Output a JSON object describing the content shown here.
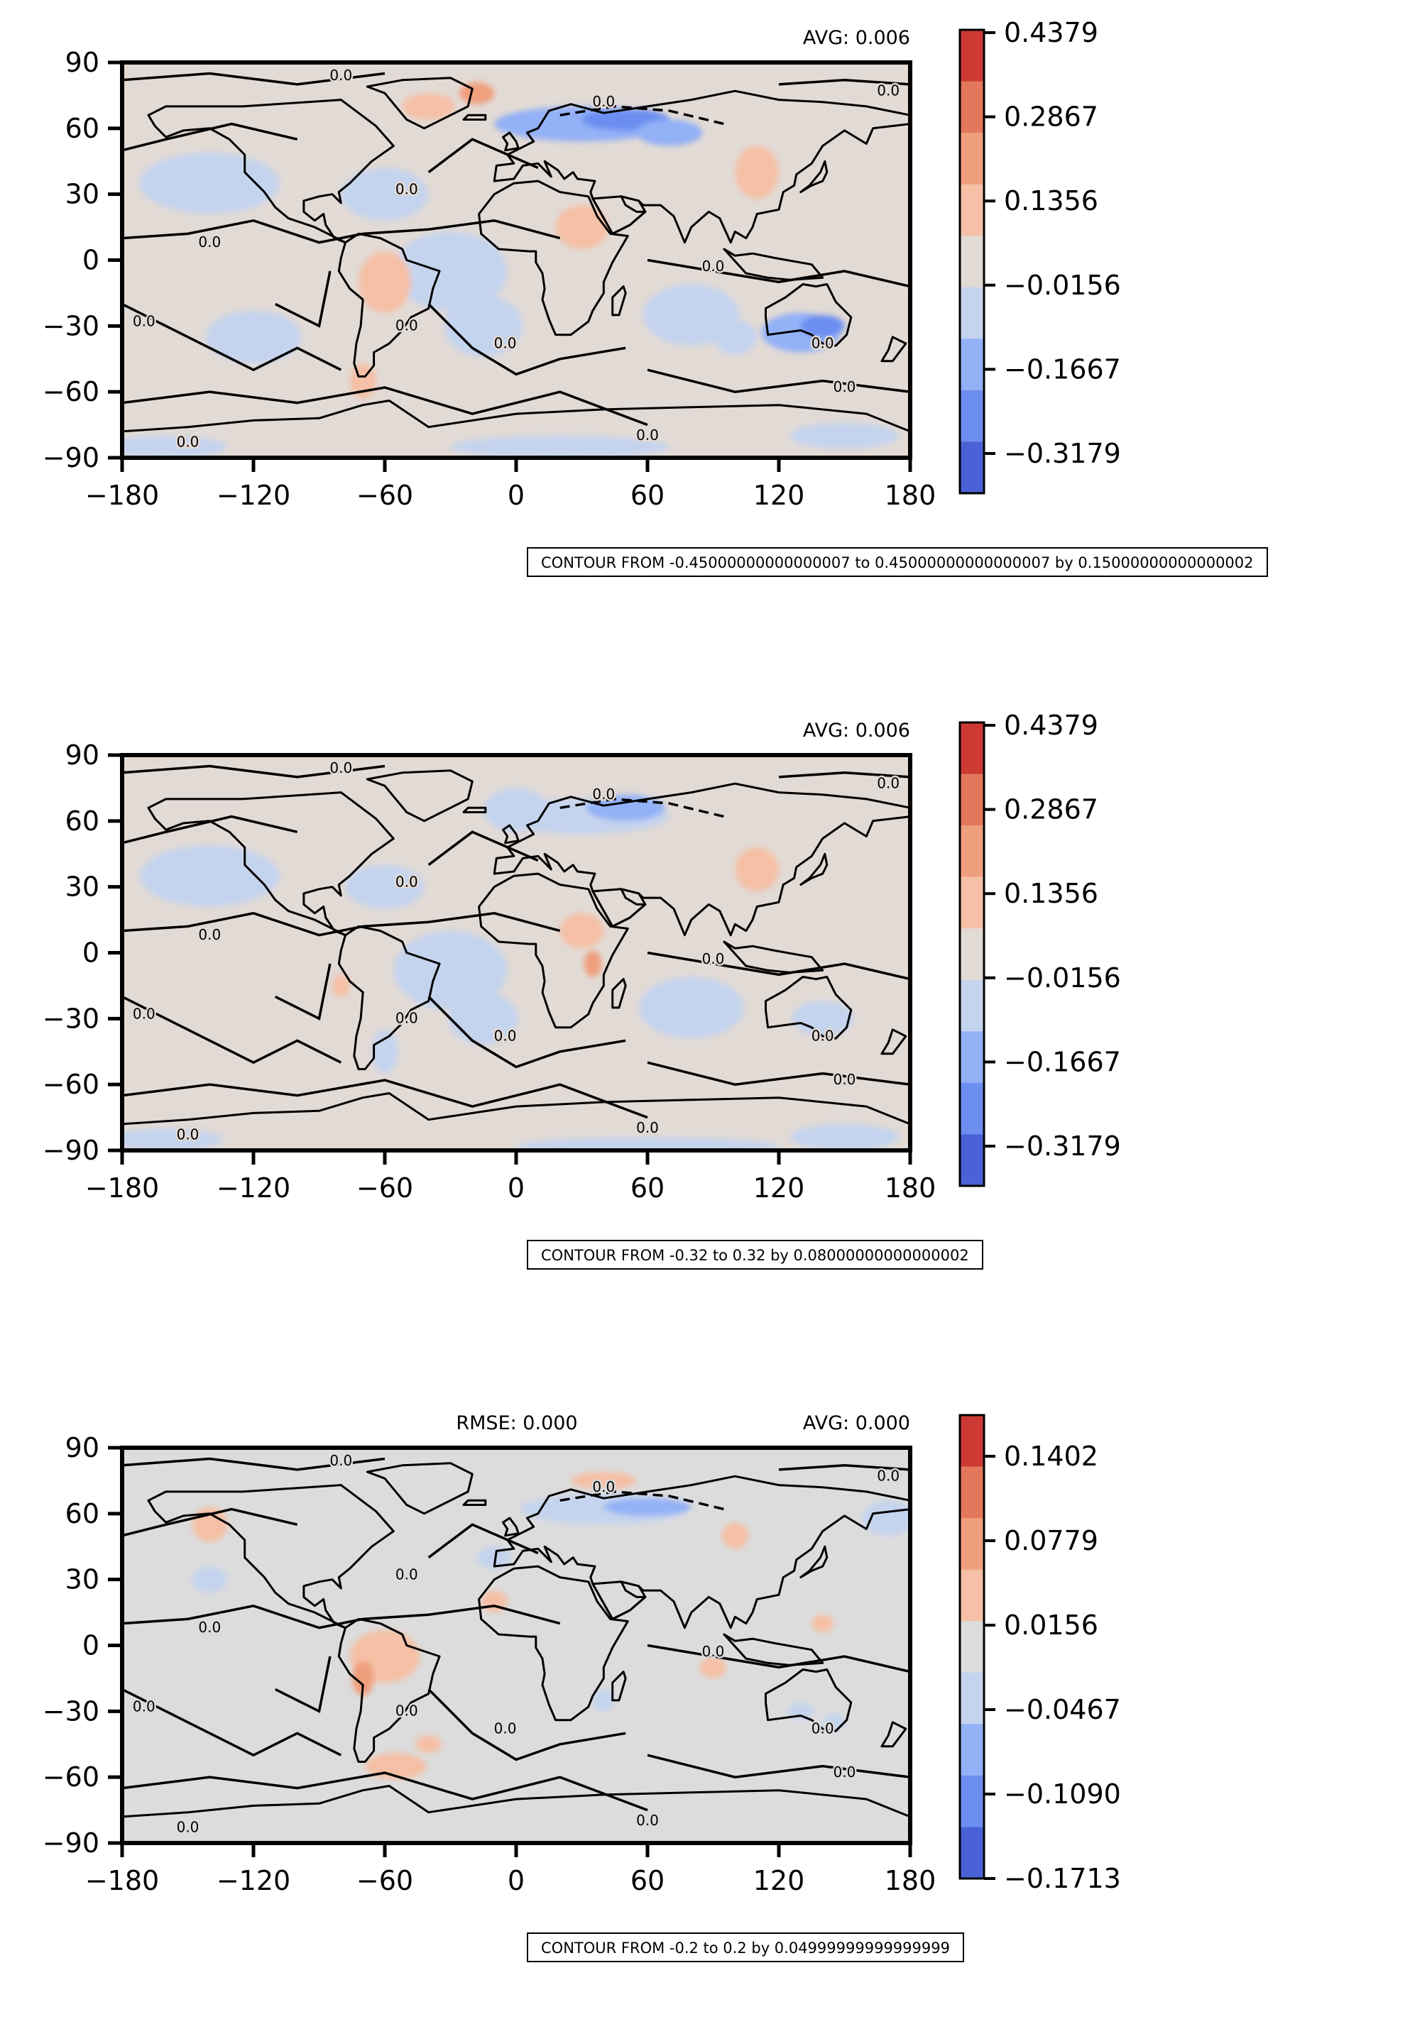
{
  "chart_data": [
    {
      "type": "heatmap",
      "subtype": "global contour map",
      "title": "",
      "header_left": "",
      "header_right": "AVG: 0.006",
      "contour_note": "CONTOUR FROM -0.45000000000000007 to 0.45000000000000007 by 0.15000000000000002",
      "contour_label": "0.0",
      "xlim": [
        -180,
        180
      ],
      "ylim": [
        -90,
        90
      ],
      "x_ticks": [
        "−180",
        "−120",
        "−60",
        "0",
        "60",
        "120",
        "180"
      ],
      "y_ticks": [
        "90",
        "60",
        "30",
        "0",
        "−30",
        "−60",
        "−90"
      ],
      "colorbar_ticks": [
        "0.4379",
        "0.2867",
        "0.1356",
        "−0.0156",
        "−0.1667",
        "−0.3179"
      ],
      "colormap": [
        "#4a62d6",
        "#6c8ef0",
        "#93b1f7",
        "#c5d4ee",
        "#e2dad5",
        "#f5c0a5",
        "#f09f7d",
        "#e3775c",
        "#cc3a33"
      ],
      "grid": false,
      "legend": "colorbar right"
    },
    {
      "type": "heatmap",
      "subtype": "global contour map",
      "title": "",
      "header_left": "",
      "header_right": "AVG: 0.006",
      "contour_note": "CONTOUR FROM -0.32 to 0.32 by 0.08000000000000002",
      "contour_label": "0.0",
      "xlim": [
        -180,
        180
      ],
      "ylim": [
        -90,
        90
      ],
      "x_ticks": [
        "−180",
        "−120",
        "−60",
        "0",
        "60",
        "120",
        "180"
      ],
      "y_ticks": [
        "90",
        "60",
        "30",
        "0",
        "−30",
        "−60",
        "−90"
      ],
      "colorbar_ticks": [
        "0.4379",
        "0.2867",
        "0.1356",
        "−0.0156",
        "−0.1667",
        "−0.3179"
      ],
      "colormap": [
        "#4a62d6",
        "#6c8ef0",
        "#93b1f7",
        "#c5d4ee",
        "#e2dad5",
        "#f5c0a5",
        "#f09f7d",
        "#e3775c",
        "#cc3a33"
      ],
      "grid": false,
      "legend": "colorbar right"
    },
    {
      "type": "heatmap",
      "subtype": "global contour map",
      "title": "",
      "header_left": "RMSE: 0.000",
      "header_right": "AVG: 0.000",
      "contour_note": "CONTOUR FROM -0.2 to 0.2 by 0.04999999999999999",
      "contour_label": "0.0",
      "xlim": [
        -180,
        180
      ],
      "ylim": [
        -90,
        90
      ],
      "x_ticks": [
        "−180",
        "−120",
        "−60",
        "0",
        "60",
        "120",
        "180"
      ],
      "y_ticks": [
        "90",
        "60",
        "30",
        "0",
        "−30",
        "−60",
        "−90"
      ],
      "colorbar_ticks": [
        "0.1402",
        "0.0779",
        "0.0156",
        "−0.0467",
        "−0.1090",
        "−0.1713"
      ],
      "colormap": [
        "#4a62d6",
        "#6c8ef0",
        "#93b1f7",
        "#c5d4ee",
        "#dcdcdc",
        "#f5c0a5",
        "#f09f7d",
        "#e3775c",
        "#cc3a33"
      ],
      "grid": false,
      "legend": "colorbar right"
    }
  ]
}
